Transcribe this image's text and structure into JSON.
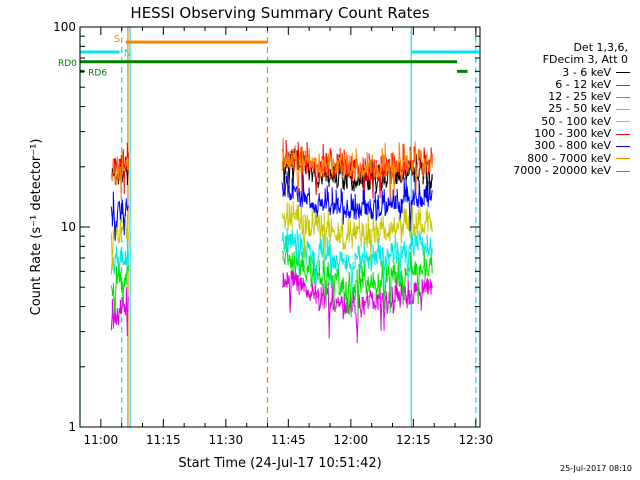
{
  "chart_data": {
    "type": "line",
    "title": "HESSI Observing Summary Count Rates",
    "xlabel": "Start Time (24-Jul-17 10:51:42)",
    "ylabel": "Count Rate (s⁻¹ detector⁻¹)",
    "yscale": "log",
    "ylim": [
      1,
      100
    ],
    "xlim_minutes": [
      55,
      151
    ],
    "x_ticks": [
      {
        "label": "11:00",
        "minute": 60
      },
      {
        "label": "11:15",
        "minute": 75
      },
      {
        "label": "11:30",
        "minute": 90
      },
      {
        "label": "11:45",
        "minute": 105
      },
      {
        "label": "12:00",
        "minute": 120
      },
      {
        "label": "12:15",
        "minute": 135
      },
      {
        "label": "12:30",
        "minute": 150
      }
    ],
    "y_ticks": [
      {
        "label": "1",
        "value": 1
      },
      {
        "label": "10",
        "value": 10
      },
      {
        "label": "100",
        "value": 100
      }
    ],
    "legend": {
      "header": [
        "Det 1,3,6,",
        "FDecim 3, Att 0"
      ],
      "placement": "right"
    },
    "series": [
      {
        "name": "3 - 6 keV",
        "color": "#000000",
        "seg1": [
          17,
          19
        ],
        "seg2": [
          22,
          18,
          16.5,
          18,
          19
        ]
      },
      {
        "name": "6 - 12 keV",
        "color": "#e000e0",
        "seg1": [
          3.3,
          4.0
        ],
        "seg2": [
          5.4,
          4.3,
          4.0,
          4.3,
          4.8
        ]
      },
      {
        "name": "12 - 25 keV",
        "color": "#00e000",
        "seg1": [
          5.0,
          5.8
        ],
        "seg2": [
          7.0,
          5.6,
          5.0,
          5.5,
          6.2
        ]
      },
      {
        "name": "25 - 50 keV",
        "color": "#00e8e8",
        "seg1": [
          6.3,
          7.3
        ],
        "seg2": [
          8.6,
          7.0,
          6.5,
          7.2,
          8.3
        ]
      },
      {
        "name": "50 - 100 keV",
        "color": "#c8c800",
        "seg1": [
          8.8,
          9.8
        ],
        "seg2": [
          11.0,
          9.5,
          8.8,
          9.4,
          10.5
        ]
      },
      {
        "name": "100 - 300 keV",
        "color": "#ff0000",
        "seg1": [
          18,
          21
        ],
        "seg2": [
          22,
          20,
          19,
          19.5,
          20.5
        ]
      },
      {
        "name": "300 - 800 keV",
        "color": "#0000ff",
        "seg1": [
          11.5,
          13.0
        ],
        "seg2": [
          15.5,
          12.8,
          12.0,
          12.8,
          14.0
        ]
      },
      {
        "name": "800 - 7000 keV",
        "color": "#ff8000",
        "seg1": [
          17,
          20
        ],
        "seg2": [
          21,
          20,
          19.5,
          20,
          21
        ]
      },
      {
        "name": "7000 - 20000 keV",
        "color": "#b87800",
        "seg1": [],
        "seg2": []
      }
    ],
    "segments": {
      "seg1_minutes": [
        62.5,
        66.5
      ],
      "seg2_minutes": [
        103.5,
        139.5
      ]
    },
    "status_bars": [
      {
        "label": "",
        "color": "#00e8e8",
        "minute_start": 55,
        "minute_end": 64.5,
        "level": 75
      },
      {
        "label": "S",
        "color": "#ff8000",
        "minute_start": 66,
        "minute_end": 100,
        "level": 84
      },
      {
        "label": "N",
        "color": "#00e8e8",
        "minute_start": 66,
        "minute_end": 66,
        "level": 75
      },
      {
        "label": "",
        "color": "#00e8e8",
        "minute_start": 134.5,
        "minute_end": 150.8,
        "level": 75
      },
      {
        "label": "RD0",
        "color": "#008000",
        "minute_start": 55,
        "minute_end": 145.5,
        "level": 67
      },
      {
        "label": "RD6",
        "color": "#008000",
        "minute_start": 55,
        "minute_end": 56,
        "level": 60
      },
      {
        "label": "",
        "color": "#008000",
        "minute_start": 145.5,
        "minute_end": 148,
        "level": 60
      }
    ],
    "vertical_lines": [
      {
        "minute": 55,
        "color": "#00e8e8",
        "style": "solid"
      },
      {
        "minute": 65,
        "color": "#00e8e8",
        "style": "dashed"
      },
      {
        "minute": 66.5,
        "color": "#ff8000",
        "style": "solid"
      },
      {
        "minute": 67,
        "color": "#00e8e8",
        "style": "solid"
      },
      {
        "minute": 100,
        "color": "#ff8000",
        "style": "dashed"
      },
      {
        "minute": 134.5,
        "color": "#00e8e8",
        "style": "solid"
      },
      {
        "minute": 150,
        "color": "#00e8e8",
        "style": "dashed"
      }
    ],
    "grid": false
  },
  "timestamp": "25-Jul-2017 08:10"
}
